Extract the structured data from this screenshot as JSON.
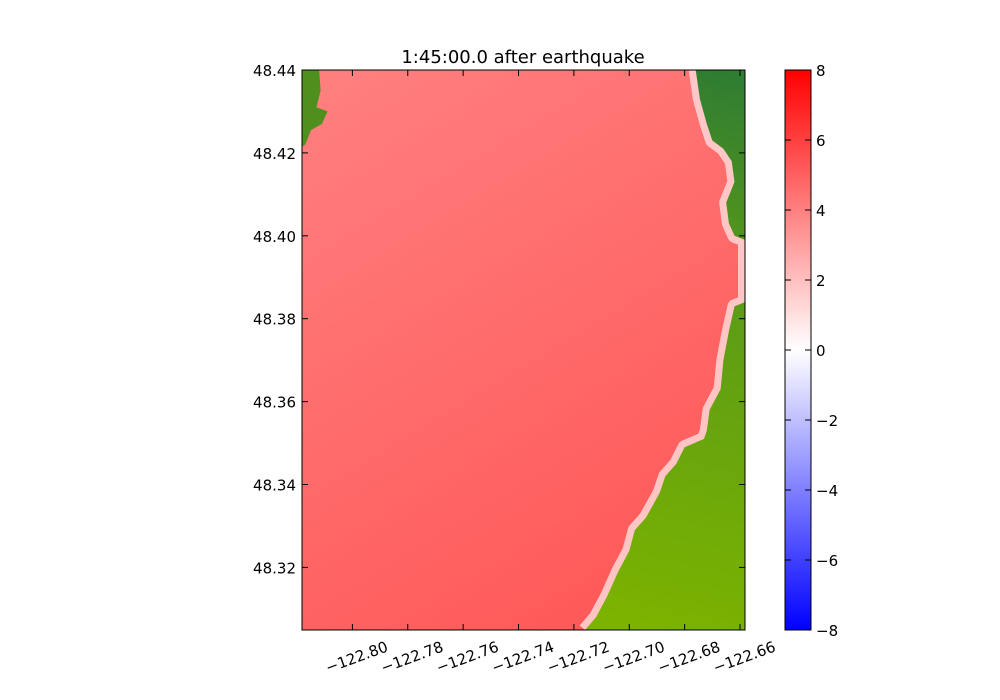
{
  "chart_data": {
    "type": "heatmap",
    "title": "1:45:00.0 after earthquake",
    "xlabel": "",
    "ylabel": "",
    "x_ticks": [
      -122.8,
      -122.78,
      -122.76,
      -122.74,
      -122.72,
      -122.7,
      -122.68,
      -122.66
    ],
    "x_tick_labels": [
      "−122.80",
      "−122.78",
      "−122.76",
      "−122.74",
      "−122.72",
      "−122.70",
      "−122.68",
      "−122.66"
    ],
    "y_ticks": [
      48.32,
      48.34,
      48.36,
      48.38,
      48.4,
      48.42,
      48.44
    ],
    "y_tick_labels": [
      "48.32",
      "48.34",
      "48.36",
      "48.38",
      "48.40",
      "48.42",
      "48.44"
    ],
    "xlim": [
      -122.8182,
      -122.6582
    ],
    "ylim": [
      48.3049,
      48.44
    ],
    "colorbar": {
      "range": [
        -8,
        8
      ],
      "ticks": [
        -8,
        -6,
        -4,
        -2,
        0,
        2,
        4,
        6,
        8
      ],
      "tick_labels": [
        "−8",
        "−6",
        "−4",
        "−2",
        "0",
        "2",
        "4",
        "6",
        "8"
      ],
      "colormap": [
        "#0000ff",
        "#ffffff",
        "#ff0000"
      ]
    },
    "fields": {
      "water_surface": "4.5–5.2 over open water, 0–2 along the eastern shoreline",
      "land": "topography shaded green"
    },
    "colors": {
      "water_high": "#ff5757",
      "water_low": "#ff8080",
      "shore_light": "#ffd0d0",
      "land_light": "#7bb300",
      "land_dark": "#2f7d32"
    },
    "coastline_east": [
      [
        -122.676,
        48.44
      ],
      [
        -122.6745,
        48.433
      ],
      [
        -122.672,
        48.427
      ],
      [
        -122.67,
        48.423
      ],
      [
        -122.666,
        48.421
      ],
      [
        -122.663,
        48.418
      ],
      [
        -122.662,
        48.413
      ],
      [
        -122.665,
        48.408
      ],
      [
        -122.664,
        48.403
      ],
      [
        -122.662,
        48.4
      ],
      [
        -122.6582,
        48.399
      ],
      [
        -122.6582,
        48.384
      ],
      [
        -122.662,
        48.383
      ],
      [
        -122.664,
        48.377
      ],
      [
        -122.666,
        48.37
      ],
      [
        -122.667,
        48.363
      ],
      [
        -122.671,
        48.358
      ],
      [
        -122.672,
        48.353
      ],
      [
        -122.673,
        48.351
      ],
      [
        -122.68,
        48.349
      ],
      [
        -122.683,
        48.345
      ],
      [
        -122.687,
        48.342
      ],
      [
        -122.689,
        48.338
      ],
      [
        -122.694,
        48.332
      ],
      [
        -122.698,
        48.329
      ],
      [
        -122.7,
        48.324
      ],
      [
        -122.704,
        48.319
      ],
      [
        -122.708,
        48.313
      ],
      [
        -122.712,
        48.308
      ],
      [
        -122.716,
        48.3049
      ]
    ],
    "land_west": [
      [
        -122.8182,
        48.44
      ],
      [
        -122.812,
        48.44
      ],
      [
        -122.8115,
        48.435
      ],
      [
        -122.813,
        48.431
      ],
      [
        -122.809,
        48.43
      ],
      [
        -122.811,
        48.427
      ],
      [
        -122.815,
        48.4255
      ],
      [
        -122.817,
        48.422
      ],
      [
        -122.8182,
        48.4215
      ]
    ]
  }
}
